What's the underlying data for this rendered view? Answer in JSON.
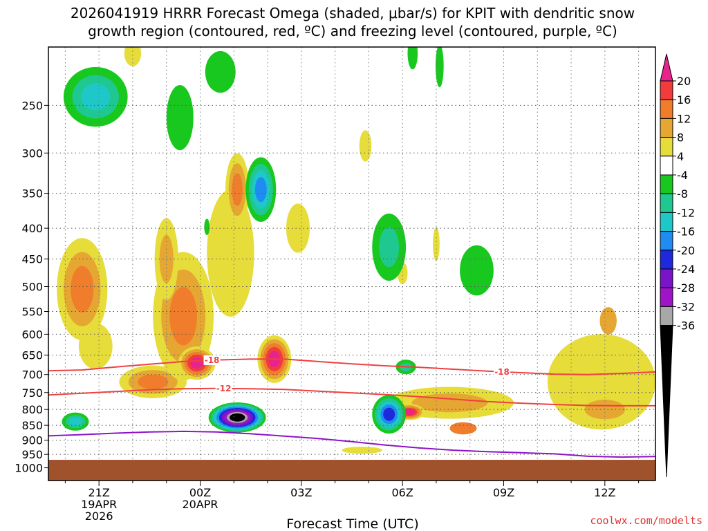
{
  "chart_data": {
    "type": "heatmap",
    "title_lines": [
      "2026041919 HRRR Forecast Omega (shaded, μbar/s) for KPIT with dendritic snow",
      "growth region (contoured, red, ºC) and freezing level (contoured, purple, ºC)"
    ],
    "xlabel": "Forecast Time (UTC)",
    "credit": "coolwx.com/modelts",
    "xlim": [
      19.5,
      37.5
    ],
    "ylim": [
      1050,
      200
    ],
    "y_ticks": [
      250,
      300,
      350,
      400,
      450,
      500,
      550,
      600,
      650,
      700,
      750,
      800,
      850,
      900,
      950,
      1000
    ],
    "y_tick_labels": [
      "250",
      "300",
      "350",
      "400",
      "450",
      "500",
      "550",
      "600",
      "650",
      "700",
      "750",
      "800",
      "850",
      "900",
      "950",
      "1000"
    ],
    "x_ticks": [
      {
        "t": 21,
        "lines": [
          "21Z",
          "19APR",
          "2026"
        ]
      },
      {
        "t": 24,
        "lines": [
          "00Z",
          "20APR"
        ]
      },
      {
        "t": 27,
        "lines": [
          "03Z"
        ]
      },
      {
        "t": 30,
        "lines": [
          "06Z"
        ]
      },
      {
        "t": 33,
        "lines": [
          "09Z"
        ]
      },
      {
        "t": 36,
        "lines": [
          "12Z"
        ]
      }
    ],
    "colorbar": {
      "tick_labels": [
        "20",
        "16",
        "12",
        "8",
        "4",
        "-4",
        "-8",
        "-12",
        "-16",
        "-20",
        "-24",
        "-28",
        "-32",
        "-36"
      ],
      "bins": [
        {
          "color": "#e8248c",
          "label": ">20"
        },
        {
          "color": "#f23c3c",
          "label": "16 to 20"
        },
        {
          "color": "#ef7d2c",
          "label": "12 to 16"
        },
        {
          "color": "#e6a632",
          "label": "8 to 12"
        },
        {
          "color": "#e6dc3a",
          "label": "4 to 8"
        },
        {
          "color": "#ffffff",
          "label": "-4 to 4"
        },
        {
          "color": "#18c81e",
          "label": "-8 to -4"
        },
        {
          "color": "#1fc890",
          "label": "-12 to -8"
        },
        {
          "color": "#1ec8c8",
          "label": "-16 to -12"
        },
        {
          "color": "#1e8cf0",
          "label": "-20 to -16"
        },
        {
          "color": "#1e28dc",
          "label": "-24 to -20"
        },
        {
          "color": "#7a14c8",
          "label": "-28 to -24"
        },
        {
          "color": "#a014c8",
          "label": "-32 to -28"
        },
        {
          "color": "#a8a8a8",
          "label": "-36 to -32"
        },
        {
          "color": "#000000",
          "label": "<-36"
        }
      ]
    },
    "ground": {
      "color": "#a0522d",
      "top_hpa": 970
    },
    "isotherms": [
      {
        "name": "-18C",
        "label": "-18",
        "color": "#f04040",
        "label_at_t": [
          24.35,
          32.95
        ],
        "points": [
          [
            19.5,
            690
          ],
          [
            20.5,
            688
          ],
          [
            21.5,
            680
          ],
          [
            22.5,
            673
          ],
          [
            23.5,
            666
          ],
          [
            24.5,
            662
          ],
          [
            25.5,
            660
          ],
          [
            26.5,
            660
          ],
          [
            27.5,
            666
          ],
          [
            28.5,
            672
          ],
          [
            29.5,
            677
          ],
          [
            30.5,
            681
          ],
          [
            31.5,
            686
          ],
          [
            32.5,
            691
          ],
          [
            33.5,
            695
          ],
          [
            34.5,
            699
          ],
          [
            35.5,
            700
          ],
          [
            36.5,
            697
          ],
          [
            37.5,
            693
          ]
        ]
      },
      {
        "name": "-12C",
        "label": "-12",
        "color": "#f04040",
        "label_at_t": [
          24.7
        ],
        "points": [
          [
            19.5,
            757
          ],
          [
            20.5,
            752
          ],
          [
            21.5,
            747
          ],
          [
            22.5,
            742
          ],
          [
            23.5,
            739
          ],
          [
            24.5,
            738
          ],
          [
            25.5,
            739
          ],
          [
            26.5,
            741
          ],
          [
            27.5,
            746
          ],
          [
            28.5,
            751
          ],
          [
            29.5,
            756
          ],
          [
            30.5,
            762
          ],
          [
            31.5,
            769
          ],
          [
            32.5,
            776
          ],
          [
            33.5,
            781
          ],
          [
            34.5,
            785
          ],
          [
            35.5,
            788
          ],
          [
            36.5,
            789
          ],
          [
            37.5,
            789
          ]
        ]
      },
      {
        "name": "0C",
        "label": "",
        "color": "#8c14c8",
        "label_at_t": [],
        "points": [
          [
            19.5,
            885
          ],
          [
            20.5,
            881
          ],
          [
            21.5,
            876
          ],
          [
            22.5,
            872
          ],
          [
            23.5,
            870
          ],
          [
            24.5,
            872
          ],
          [
            25.5,
            878
          ],
          [
            26.5,
            886
          ],
          [
            27.5,
            894
          ],
          [
            28.5,
            905
          ],
          [
            29.5,
            917
          ],
          [
            30.5,
            927
          ],
          [
            31.5,
            935
          ],
          [
            32.5,
            940
          ],
          [
            33.5,
            944
          ],
          [
            34.5,
            948
          ],
          [
            35.5,
            957
          ],
          [
            36.5,
            960
          ],
          [
            37.5,
            958
          ]
        ]
      }
    ],
    "omega_areas": [
      {
        "id": "A1",
        "t": 20.5,
        "p": 505,
        "rt": 0.75,
        "rp": 195,
        "rings": [
          "#e6dc3a",
          "#e6a632",
          "#ef7d2c"
        ]
      },
      {
        "id": "A2",
        "t": 20.9,
        "p": 628,
        "rt": 0.5,
        "rp": 110,
        "rings": [
          "#e6dc3a"
        ]
      },
      {
        "id": "A3",
        "t": 22.6,
        "p": 720,
        "rt": 1.0,
        "rp": 90,
        "rings": [
          "#e6dc3a",
          "#e6a632",
          "#ef7d2c"
        ]
      },
      {
        "id": "A4",
        "t": 23.5,
        "p": 560,
        "rt": 0.9,
        "rp": 270,
        "rings": [
          "#e6dc3a",
          "#e6a632",
          "#ef7d2c"
        ]
      },
      {
        "id": "A5",
        "t": 23.0,
        "p": 450,
        "rt": 0.35,
        "rp": 140,
        "rings": [
          "#e6dc3a",
          "#e6a632"
        ]
      },
      {
        "id": "A6",
        "t": 23.9,
        "p": 670,
        "rt": 0.55,
        "rp": 85,
        "rings": [
          "#e6dc3a",
          "#e6a632",
          "#ef7d2c",
          "#f23c3c",
          "#e8248c"
        ]
      },
      {
        "id": "A7",
        "t": 24.9,
        "p": 440,
        "rt": 0.7,
        "rp": 210,
        "rings": [
          "#e6dc3a"
        ]
      },
      {
        "id": "A8",
        "t": 25.1,
        "p": 345,
        "rt": 0.35,
        "rp": 95,
        "rings": [
          "#e6dc3a",
          "#e6a632",
          "#ef7d2c"
        ]
      },
      {
        "id": "A9",
        "t": 26.9,
        "p": 400,
        "rt": 0.35,
        "rp": 75,
        "rings": [
          "#e6dc3a"
        ]
      },
      {
        "id": "A10",
        "t": 26.2,
        "p": 660,
        "rt": 0.5,
        "rp": 120,
        "rings": [
          "#e6dc3a",
          "#e6a632",
          "#ef7d2c",
          "#f23c3c",
          "#e8248c"
        ]
      },
      {
        "id": "A11",
        "t": 31.4,
        "p": 780,
        "rt": 1.9,
        "rp": 95,
        "rings": [
          "#e6dc3a",
          "#e6a632"
        ]
      },
      {
        "id": "A12",
        "t": 30.2,
        "p": 808,
        "rt": 0.45,
        "rp": 50,
        "rings": [
          "#e6dc3a",
          "#e6a632",
          "#ef7d2c",
          "#f23c3c",
          "#e8248c"
        ]
      },
      {
        "id": "A13",
        "t": 31.8,
        "p": 860,
        "rt": 0.4,
        "rp": 40,
        "rings": [
          "#ef7d2c"
        ]
      },
      {
        "id": "A14",
        "t": 35.9,
        "p": 720,
        "rt": 1.6,
        "rp": 260,
        "rings": [
          "#e6dc3a"
        ]
      },
      {
        "id": "A15",
        "t": 36.0,
        "p": 800,
        "rt": 0.6,
        "rp": 60,
        "rings": [
          "#e6a632"
        ]
      },
      {
        "id": "A16",
        "t": 36.1,
        "p": 570,
        "rt": 0.25,
        "rp": 60,
        "rings": [
          "#e6a632"
        ]
      },
      {
        "id": "A17",
        "t": 30.0,
        "p": 475,
        "rt": 0.15,
        "rp": 40,
        "rings": [
          "#e6dc3a"
        ]
      },
      {
        "id": "A18",
        "t": 30.3,
        "p": 205,
        "rt": 0.15,
        "rp": 25,
        "rings": [
          "#18c81e"
        ]
      },
      {
        "id": "A19",
        "t": 28.9,
        "p": 292,
        "rt": 0.18,
        "rp": 35,
        "rings": [
          "#e6dc3a"
        ]
      },
      {
        "id": "A20",
        "t": 20.9,
        "p": 242,
        "rt": 0.95,
        "rp": 55,
        "rings": [
          "#18c81e",
          "#1fc890",
          "#1ec8c8"
        ]
      },
      {
        "id": "A21",
        "t": 23.4,
        "p": 262,
        "rt": 0.4,
        "rp": 65,
        "rings": [
          "#18c81e"
        ]
      },
      {
        "id": "A22",
        "t": 24.6,
        "p": 220,
        "rt": 0.45,
        "rp": 35,
        "rings": [
          "#18c81e"
        ]
      },
      {
        "id": "A23",
        "t": 25.8,
        "p": 345,
        "rt": 0.45,
        "rp": 85,
        "rings": [
          "#18c81e",
          "#1fc890",
          "#1ec8c8",
          "#1e8cf0"
        ]
      },
      {
        "id": "A24",
        "t": 29.6,
        "p": 430,
        "rt": 0.5,
        "rp": 110,
        "rings": [
          "#18c81e",
          "#1fc890"
        ]
      },
      {
        "id": "A25",
        "t": 32.2,
        "p": 470,
        "rt": 0.5,
        "rp": 90,
        "rings": [
          "#18c81e"
        ]
      },
      {
        "id": "A26",
        "t": 20.3,
        "p": 838,
        "rt": 0.4,
        "rp": 58,
        "rings": [
          "#18c81e",
          "#1fc890",
          "#1ec8c8"
        ]
      },
      {
        "id": "A27",
        "t": 29.6,
        "p": 815,
        "rt": 0.5,
        "rp": 120,
        "rings": [
          "#18c81e",
          "#1fc890",
          "#1ec8c8",
          "#1e8cf0",
          "#1e28dc"
        ]
      },
      {
        "id": "A28",
        "t": 30.1,
        "p": 680,
        "rt": 0.3,
        "rp": 38,
        "rings": [
          "#18c81e",
          "#1fc890"
        ]
      },
      {
        "id": "A29",
        "t": 24.2,
        "p": 398,
        "rt": 0.08,
        "rp": 25,
        "rings": [
          "#18c81e"
        ]
      },
      {
        "id": "A30",
        "t": 22.0,
        "p": 205,
        "rt": 0.25,
        "rp": 20,
        "rings": [
          "#e6dc3a"
        ]
      },
      {
        "id": "A31",
        "t": 28.8,
        "p": 935,
        "rt": 0.6,
        "rp": 25,
        "rings": [
          "#e6dc3a"
        ]
      },
      {
        "id": "A32",
        "t": 31.0,
        "p": 425,
        "rt": 0.1,
        "rp": 55,
        "rings": [
          "#e6dc3a"
        ]
      },
      {
        "id": "A33",
        "t": 31.1,
        "p": 215,
        "rt": 0.12,
        "rp": 35,
        "rings": [
          "#18c81e"
        ]
      },
      {
        "id": "A34",
        "t": 25.1,
        "p": 825,
        "rt": 0.85,
        "rp": 95,
        "rings": [
          "#18c81e",
          "#1fc890",
          "#1ec8c8",
          "#1e8cf0",
          "#1e28dc",
          "#7a14c8",
          "#a014c8",
          "#a8a8a8",
          "#000000"
        ]
      }
    ]
  }
}
